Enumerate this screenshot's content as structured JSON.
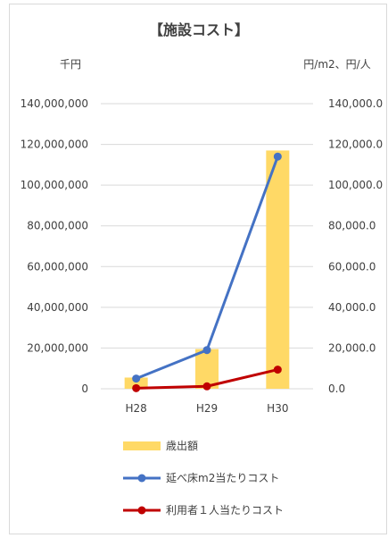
{
  "chart_data": {
    "type": "bar",
    "title": "【施設コスト】",
    "y_left_unit": "千円",
    "y_right_unit": "円/m2、円/人",
    "categories": [
      "H28",
      "H29",
      "H30"
    ],
    "y_left_ticks": [
      "140,000,000",
      "120,000,000",
      "100,000,000",
      "80,000,000",
      "60,000,000",
      "40,000,000",
      "20,000,000",
      "0"
    ],
    "y_right_ticks": [
      "140,000.0",
      "120,000.0",
      "100,000.0",
      "80,000.0",
      "60,000.0",
      "40,000.0",
      "20,000.0",
      "0.0"
    ],
    "ylim_left": [
      0,
      140000000
    ],
    "ylim_right": [
      0,
      140000
    ],
    "grid": true,
    "legend_position": "bottom",
    "series": [
      {
        "name": "歳出額",
        "kind": "bar",
        "axis": "left",
        "color": "#FFD966",
        "values": [
          5500000,
          19500000,
          117000000
        ]
      },
      {
        "name": "延べ床m2当たりコスト",
        "kind": "line",
        "axis": "right",
        "color": "#4472C4",
        "values": [
          5000,
          19000,
          114000
        ]
      },
      {
        "name": "利用者１人当たりコスト",
        "kind": "line",
        "axis": "right",
        "color": "#C00000",
        "values": [
          300,
          1200,
          9400
        ]
      }
    ]
  }
}
